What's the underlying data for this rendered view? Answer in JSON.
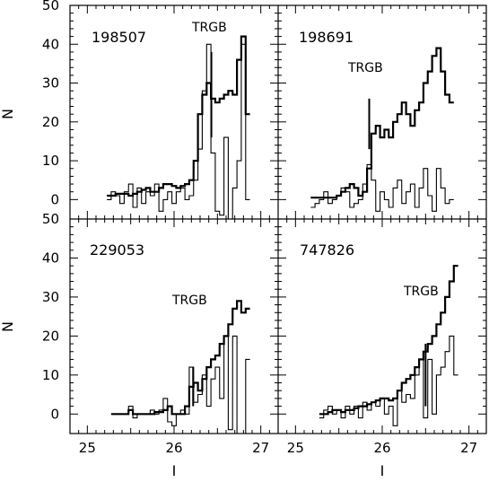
{
  "chart_data": [
    {
      "type": "histogram",
      "id": "198507",
      "label": "198507",
      "annotation": "TRGB",
      "trgb_I": 26.43,
      "xlim": [
        24.8,
        27.2
      ],
      "ylim": [
        -5,
        50
      ],
      "xlabel": "I",
      "ylabel": "N",
      "series": [
        {
          "style": "thick",
          "x": [
            25.25,
            25.3,
            25.35,
            25.4,
            25.45,
            25.5,
            25.55,
            25.6,
            25.65,
            25.7,
            25.75,
            25.8,
            25.85,
            25.9,
            25.95,
            26.0,
            26.05,
            26.1,
            26.15,
            26.2,
            26.25,
            26.3,
            26.35,
            26.4,
            26.45,
            26.5,
            26.55,
            26.6,
            26.65,
            26.7,
            26.75,
            26.8,
            26.85
          ],
          "y": [
            1,
            1,
            1.5,
            1.5,
            1.5,
            1,
            1.5,
            2,
            2.5,
            3,
            2,
            2,
            3,
            4,
            4,
            3.5,
            3,
            3.5,
            4,
            5,
            10,
            22,
            27,
            30,
            26,
            25,
            26,
            27,
            28,
            27,
            36,
            42,
            22
          ]
        },
        {
          "style": "thin",
          "x": [
            25.25,
            25.3,
            25.35,
            25.4,
            25.45,
            25.5,
            25.55,
            25.6,
            25.65,
            25.7,
            25.75,
            25.8,
            25.85,
            25.9,
            25.95,
            26.0,
            26.05,
            26.1,
            26.15,
            26.2,
            26.25,
            26.3,
            26.35,
            26.4,
            26.45,
            26.5,
            26.55,
            26.6,
            26.65,
            26.7,
            26.75,
            26.8,
            26.85
          ],
          "y": [
            0,
            2,
            1,
            -1,
            2,
            4,
            -2,
            3,
            -1,
            2,
            1,
            4,
            -3,
            0,
            2,
            -1,
            2,
            3,
            0,
            1,
            5,
            13,
            28,
            40,
            12,
            -3,
            -4,
            16,
            -5,
            3,
            10,
            40,
            0
          ]
        }
      ]
    },
    {
      "type": "histogram",
      "id": "198691",
      "label": "198691",
      "annotation": "TRGB",
      "trgb_I": 25.85,
      "xlim": [
        24.8,
        27.2
      ],
      "ylim": [
        -5,
        50
      ],
      "xlabel": "I",
      "ylabel": "N",
      "series": [
        {
          "style": "thick",
          "x": [
            25.2,
            25.25,
            25.3,
            25.35,
            25.4,
            25.45,
            25.5,
            25.55,
            25.6,
            25.65,
            25.7,
            25.75,
            25.8,
            25.85,
            25.9,
            25.95,
            26.0,
            26.05,
            26.1,
            26.15,
            26.2,
            26.25,
            26.3,
            26.35,
            26.4,
            26.45,
            26.5,
            26.55,
            26.6,
            26.65,
            26.7,
            26.75,
            26.8
          ],
          "y": [
            0.5,
            0.5,
            0.5,
            0.5,
            0.5,
            0.5,
            1,
            2,
            3,
            4,
            3,
            1,
            2,
            8,
            17,
            19,
            16,
            18,
            16,
            20,
            22,
            25,
            22,
            19,
            23,
            25,
            30,
            33,
            37,
            39,
            33,
            27,
            25
          ]
        },
        {
          "style": "thin",
          "x": [
            25.2,
            25.25,
            25.3,
            25.35,
            25.4,
            25.45,
            25.5,
            25.55,
            25.6,
            25.65,
            25.7,
            25.75,
            25.8,
            25.85,
            25.9,
            25.95,
            26.0,
            26.05,
            26.1,
            26.15,
            26.2,
            26.25,
            26.3,
            26.35,
            26.4,
            26.45,
            26.5,
            26.55,
            26.6,
            26.65,
            26.7,
            26.75,
            26.8
          ],
          "y": [
            -2,
            -1,
            0,
            2,
            -1,
            0,
            1,
            3,
            2,
            -2,
            -1,
            0,
            4,
            9,
            5,
            -3,
            2,
            0,
            -2,
            3,
            5,
            -1,
            2,
            4,
            -2,
            3,
            8,
            1,
            -3,
            8,
            3,
            -1,
            0
          ]
        }
      ]
    },
    {
      "type": "histogram",
      "id": "229053",
      "label": "229053",
      "annotation": "TRGB",
      "trgb_I": 26.22,
      "xlim": [
        24.8,
        27.2
      ],
      "ylim": [
        -5,
        50
      ],
      "xlabel": "I",
      "ylabel": "N",
      "series": [
        {
          "style": "thick",
          "x": [
            25.3,
            25.35,
            25.4,
            25.45,
            25.5,
            25.55,
            25.6,
            25.65,
            25.7,
            25.75,
            25.8,
            25.85,
            25.9,
            25.95,
            26.0,
            26.05,
            26.1,
            26.15,
            26.2,
            26.25,
            26.3,
            26.35,
            26.4,
            26.45,
            26.5,
            26.55,
            26.6,
            26.65,
            26.7,
            26.75,
            26.8,
            26.85
          ],
          "y": [
            0,
            0,
            0,
            0,
            1,
            0,
            0,
            0,
            0,
            0,
            0.5,
            0.5,
            1,
            2,
            0,
            0,
            0,
            2,
            7,
            8,
            6,
            9,
            12,
            14,
            15,
            18,
            20,
            23,
            27,
            29,
            26,
            27
          ]
        },
        {
          "style": "thin",
          "x": [
            25.3,
            25.35,
            25.4,
            25.45,
            25.5,
            25.55,
            25.6,
            25.65,
            25.7,
            25.75,
            25.8,
            25.85,
            25.9,
            25.95,
            26.0,
            26.05,
            26.1,
            26.15,
            26.2,
            26.25,
            26.3,
            26.35,
            26.4,
            26.45,
            26.5,
            26.55,
            26.6,
            26.65,
            26.7,
            26.75,
            26.8,
            26.85
          ],
          "y": [
            0,
            0,
            0,
            0,
            2,
            -1,
            0,
            0,
            0,
            1,
            0,
            1,
            4,
            -2,
            -3,
            0,
            1,
            0,
            12,
            3,
            5,
            10,
            2,
            9,
            12,
            4,
            20,
            -4,
            20,
            -5,
            -5,
            14
          ]
        }
      ]
    },
    {
      "type": "histogram",
      "id": "747826",
      "label": "747826",
      "annotation": "TRGB",
      "trgb_I": 26.5,
      "xlim": [
        24.8,
        27.2
      ],
      "ylim": [
        -5,
        50
      ],
      "xlabel": "I",
      "ylabel": "N",
      "series": [
        {
          "style": "thick",
          "x": [
            25.3,
            25.35,
            25.4,
            25.45,
            25.5,
            25.55,
            25.6,
            25.65,
            25.7,
            25.75,
            25.8,
            25.85,
            25.9,
            25.95,
            26.0,
            26.05,
            26.1,
            26.15,
            26.2,
            26.25,
            26.3,
            26.35,
            26.4,
            26.45,
            26.5,
            26.55,
            26.6,
            26.65,
            26.7,
            26.75,
            26.8,
            26.85
          ],
          "y": [
            0,
            0,
            0.5,
            1,
            1,
            0.5,
            1,
            1,
            1.5,
            2,
            2,
            2.5,
            3,
            3.5,
            4,
            4,
            3.5,
            4,
            6,
            8,
            9,
            10,
            12,
            14,
            16,
            18,
            20,
            23,
            26,
            30,
            34,
            38
          ]
        },
        {
          "style": "thin",
          "x": [
            25.3,
            25.35,
            25.4,
            25.45,
            25.5,
            25.55,
            25.6,
            25.65,
            25.7,
            25.75,
            25.8,
            25.85,
            25.9,
            25.95,
            26.0,
            26.05,
            26.1,
            26.15,
            26.2,
            26.25,
            26.3,
            26.35,
            26.4,
            26.45,
            26.5,
            26.55,
            26.6,
            26.65,
            26.7,
            26.75,
            26.8,
            26.85
          ],
          "y": [
            -1,
            1,
            2,
            0,
            1,
            -1,
            2,
            0,
            2,
            -1,
            3,
            1,
            3,
            2,
            4,
            0,
            2,
            -3,
            6,
            3,
            5,
            4,
            10,
            14,
            -1,
            14,
            0,
            10,
            12,
            16,
            20,
            10
          ]
        }
      ]
    }
  ],
  "axes": {
    "x_ticks": [
      "25",
      "26",
      "27"
    ],
    "y_ticks_top": [
      "0",
      "10",
      "20",
      "30",
      "40",
      "50"
    ],
    "y_ticks_bottom": [
      "0",
      "10",
      "20",
      "30",
      "40",
      "50"
    ]
  }
}
